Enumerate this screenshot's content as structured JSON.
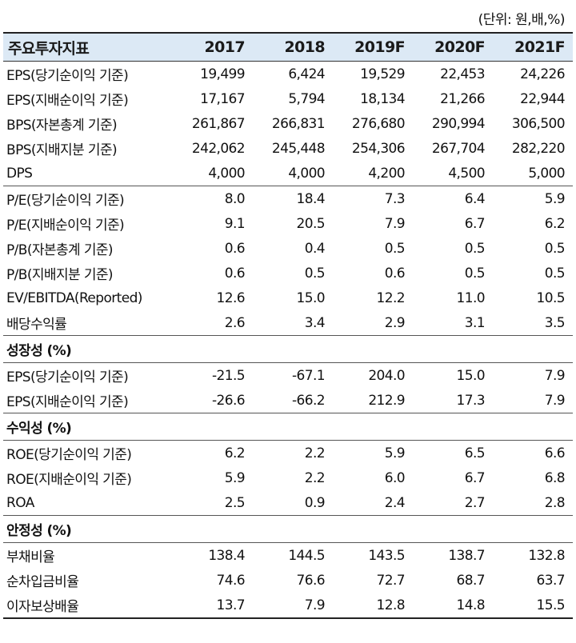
{
  "unit_note": "(단위: 원,배,%)",
  "header": {
    "label": "주요투자지표",
    "years": [
      "2017",
      "2018",
      "2019F",
      "2020F",
      "2021F"
    ]
  },
  "rows": [
    {
      "label": "EPS(당기순이익 기준)",
      "values": [
        "19,499",
        "6,424",
        "19,529",
        "22,453",
        "24,226"
      ]
    },
    {
      "label": "EPS(지배순이익 기준)",
      "values": [
        "17,167",
        "5,794",
        "18,134",
        "21,266",
        "22,944"
      ]
    },
    {
      "label": "BPS(자본총계 기준)",
      "values": [
        "261,867",
        "266,831",
        "276,680",
        "290,994",
        "306,500"
      ]
    },
    {
      "label": "BPS(지배지분 기준)",
      "values": [
        "242,062",
        "245,448",
        "254,306",
        "267,704",
        "282,220"
      ]
    },
    {
      "label": "DPS",
      "values": [
        "4,000",
        "4,000",
        "4,200",
        "4,500",
        "5,000"
      ]
    },
    {
      "label": "P/E(당기순이익 기준)",
      "values": [
        "8.0",
        "18.4",
        "7.3",
        "6.4",
        "5.9"
      ]
    },
    {
      "label": "P/E(지배순이익 기준)",
      "values": [
        "9.1",
        "20.5",
        "7.9",
        "6.7",
        "6.2"
      ]
    },
    {
      "label": "P/B(자본총계 기준)",
      "values": [
        "0.6",
        "0.4",
        "0.5",
        "0.5",
        "0.5"
      ]
    },
    {
      "label": "P/B(지배지분 기준)",
      "values": [
        "0.6",
        "0.5",
        "0.6",
        "0.5",
        "0.5"
      ]
    },
    {
      "label": "EV/EBITDA(Reported)",
      "values": [
        "12.6",
        "15.0",
        "12.2",
        "11.0",
        "10.5"
      ]
    },
    {
      "label": "배당수익률",
      "values": [
        "2.6",
        "3.4",
        "2.9",
        "3.1",
        "3.5"
      ]
    }
  ],
  "sections": [
    {
      "title": "성장성 (%)",
      "rows": [
        {
          "label": "EPS(당기순이익 기준)",
          "values": [
            "-21.5",
            "-67.1",
            "204.0",
            "15.0",
            "7.9"
          ]
        },
        {
          "label": "EPS(지배순이익 기준)",
          "values": [
            "-26.6",
            "-66.2",
            "212.9",
            "17.3",
            "7.9"
          ]
        }
      ]
    },
    {
      "title": "수익성 (%)",
      "rows": [
        {
          "label": "ROE(당기순이익 기준)",
          "values": [
            "6.2",
            "2.2",
            "5.9",
            "6.5",
            "6.6"
          ]
        },
        {
          "label": "ROE(지배순이익 기준)",
          "values": [
            "5.9",
            "2.2",
            "6.0",
            "6.7",
            "6.8"
          ]
        },
        {
          "label": "ROA",
          "values": [
            "2.5",
            "0.9",
            "2.4",
            "2.7",
            "2.8"
          ]
        }
      ]
    },
    {
      "title": "안정성 (%)",
      "rows": [
        {
          "label": "부채비율",
          "values": [
            "138.4",
            "144.5",
            "143.5",
            "138.7",
            "132.8"
          ]
        },
        {
          "label": "순차입금비율",
          "values": [
            "74.6",
            "76.6",
            "72.7",
            "68.7",
            "63.7"
          ]
        },
        {
          "label": "이자보상배율",
          "values": [
            "13.7",
            "7.9",
            "12.8",
            "14.8",
            "15.5"
          ]
        }
      ]
    }
  ]
}
